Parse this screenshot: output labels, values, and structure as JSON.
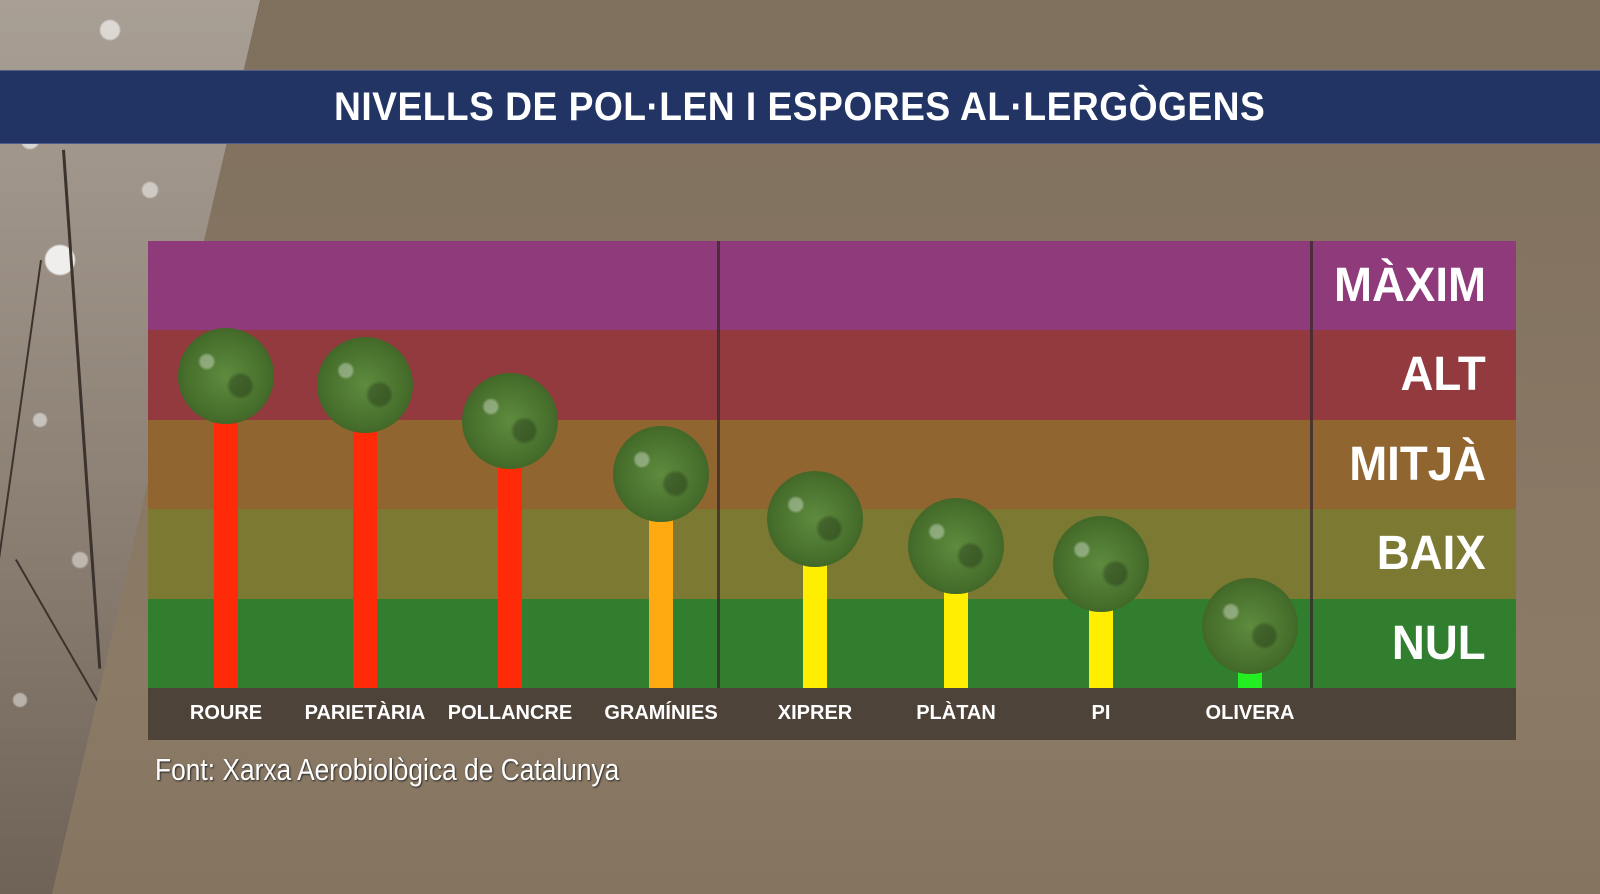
{
  "title": "NIVELLS DE POL·LEN I ESPORES AL·LERGÒGENS",
  "source": "Font: Xarxa Aerobiològica de Catalunya",
  "levels": [
    {
      "label": "MÀXIM",
      "color": "#8f3a7a"
    },
    {
      "label": "ALT",
      "color": "#923a3e"
    },
    {
      "label": "MITJÀ",
      "color": "#91652f"
    },
    {
      "label": "BAIX",
      "color": "#7c7a32"
    },
    {
      "label": "NUL",
      "color": "#317f2e"
    }
  ],
  "categories": [
    {
      "label": "ROURE",
      "level": "ALT",
      "bar_color": "#ff2a08",
      "value": 3.0
    },
    {
      "label": "PARIETÀRIA",
      "level": "ALT",
      "bar_color": "#ff2a08",
      "value": 2.9
    },
    {
      "label": "POLLANCRE",
      "level": "ALT",
      "bar_color": "#ff2a08",
      "value": 2.5
    },
    {
      "label": "GRAMÍNIES",
      "level": "MITJÀ",
      "bar_color": "#ffaa10",
      "value": 1.9
    },
    {
      "label": "XIPRER",
      "level": "BAIX",
      "bar_color": "#ffee00",
      "value": 1.4
    },
    {
      "label": "PLÀTAN",
      "level": "BAIX",
      "bar_color": "#ffee00",
      "value": 1.1
    },
    {
      "label": "PI",
      "level": "BAIX",
      "bar_color": "#ffee00",
      "value": 0.9
    },
    {
      "label": "OLIVERA",
      "level": "NUL",
      "bar_color": "#22ee22",
      "value": 0.2
    }
  ],
  "chart_data": {
    "type": "bar",
    "title": "NIVELLS DE POL·LEN I ESPORES AL·LERGÒGENS",
    "categories": [
      "ROURE",
      "PARIETÀRIA",
      "POLLANCRE",
      "GRAMÍNIES",
      "XIPRER",
      "PLÀTAN",
      "PI",
      "OLIVERA"
    ],
    "values": [
      3.0,
      2.9,
      2.5,
      1.9,
      1.4,
      1.1,
      0.9,
      0.2
    ],
    "levels": [
      "ALT",
      "ALT",
      "ALT",
      "MITJÀ",
      "BAIX",
      "BAIX",
      "BAIX",
      "NUL"
    ],
    "bar_colors": [
      "#ff2a08",
      "#ff2a08",
      "#ff2a08",
      "#ffaa10",
      "#ffee00",
      "#ffee00",
      "#ffee00",
      "#22ee22"
    ],
    "ylabel": "",
    "xlabel": "",
    "ytick_labels": [
      "NUL",
      "BAIX",
      "MITJÀ",
      "ALT",
      "MÀXIM"
    ],
    "ylim": [
      0,
      5
    ],
    "grid": false,
    "legend": null,
    "annotations": [
      "Font: Xarxa Aerobiològica de Catalunya"
    ],
    "group_dividers_after": [
      "GRAMÍNIES",
      "OLIVERA"
    ]
  }
}
